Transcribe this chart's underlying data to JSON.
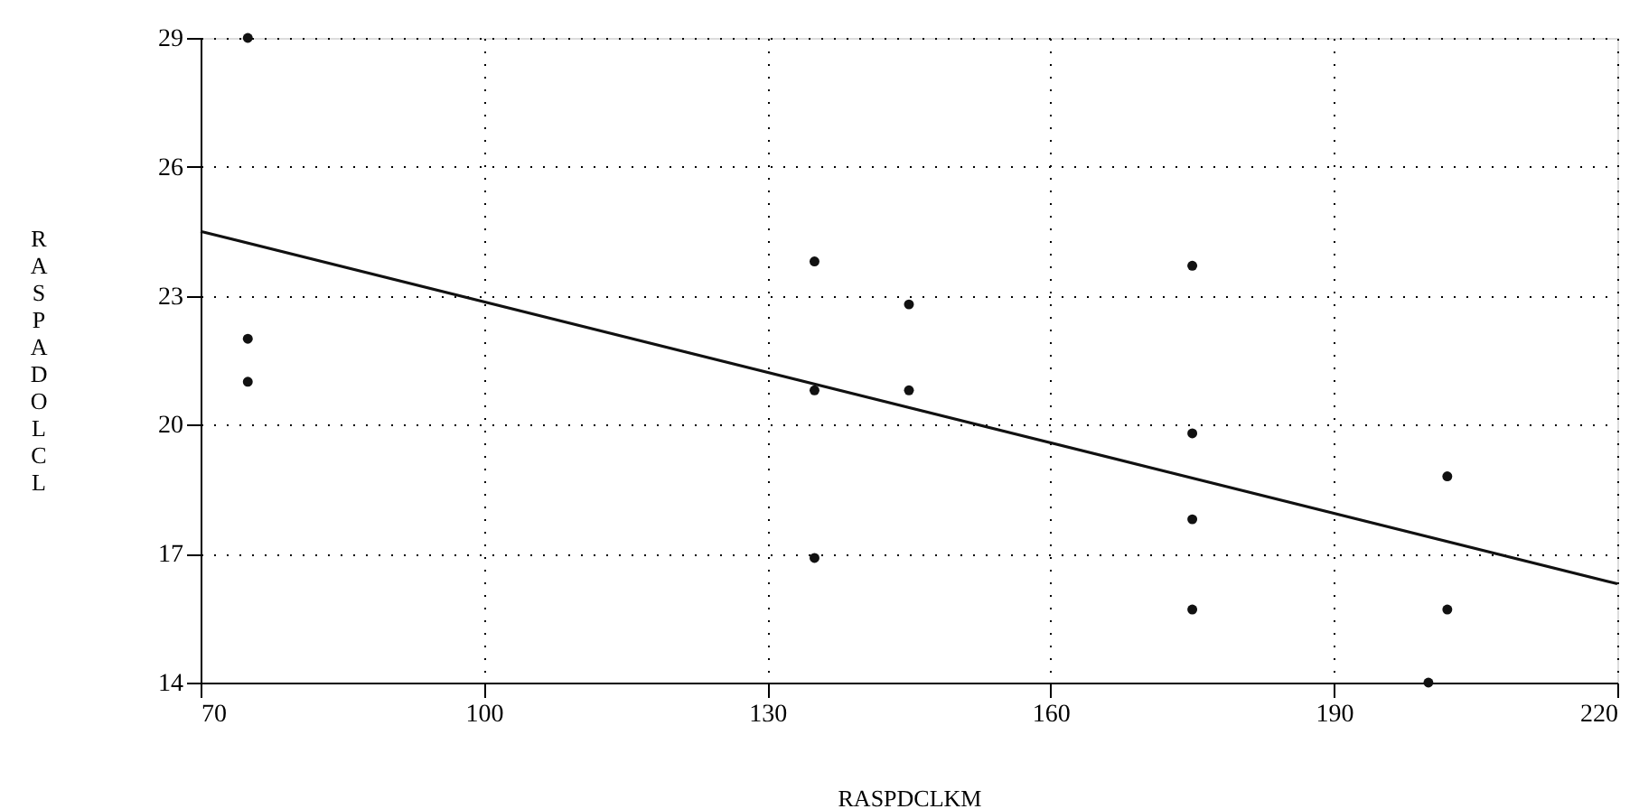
{
  "chart_data": {
    "type": "scatter",
    "xlabel": "RASPDCLKM",
    "ylabel": "RASPADOLCL",
    "xlim": [
      70,
      220
    ],
    "ylim": [
      14,
      29
    ],
    "xticks": [
      70,
      100,
      130,
      160,
      190,
      220
    ],
    "yticks": [
      14,
      17,
      20,
      23,
      26,
      29
    ],
    "grid": true,
    "series": [
      {
        "color": "#111111",
        "marker": "circle",
        "x": [
          75,
          75,
          75,
          135,
          135,
          135,
          145,
          145,
          175,
          175,
          175,
          175,
          202,
          202,
          200
        ],
        "values": [
          29,
          22,
          21,
          23.8,
          20.8,
          16.9,
          22.8,
          20.8,
          23.7,
          19.8,
          17.8,
          15.7,
          18.8,
          15.7,
          14
        ]
      },
      {
        "type": "line",
        "color": "#111111",
        "line_style": "solid",
        "marker": "none",
        "x": [
          70,
          220
        ],
        "values": [
          24.5,
          16.3
        ]
      }
    ]
  }
}
